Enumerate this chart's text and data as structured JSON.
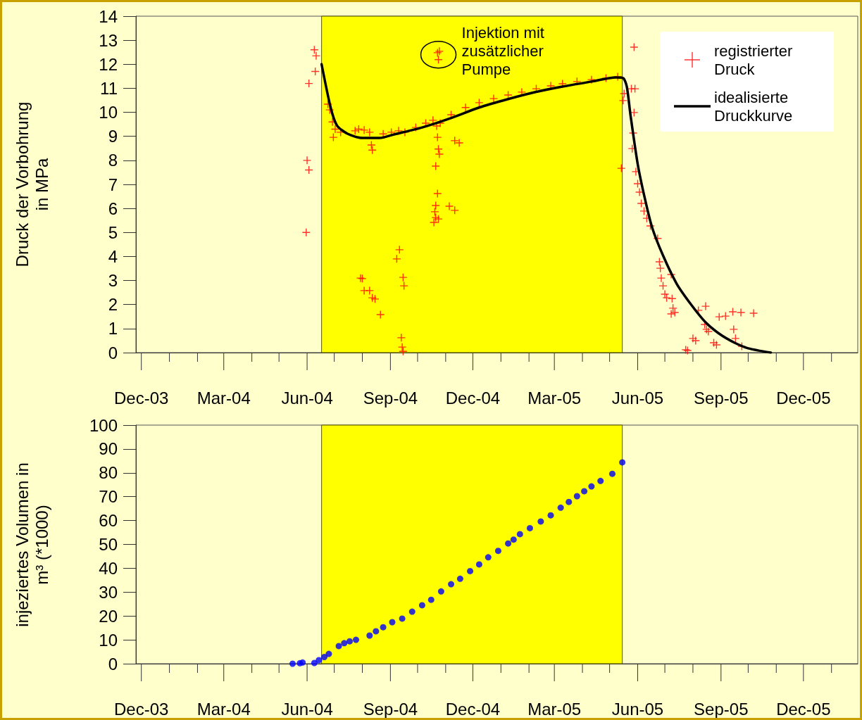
{
  "chart_data": [
    {
      "type": "scatter",
      "ylabel": "Druck der Vorbohrung in MPa",
      "xlim": [
        "2003-11-25",
        "2006-01-30"
      ],
      "xticks": [
        {
          "value": "2003-12-01",
          "label": "Dec-03"
        },
        {
          "value": "2004-01-01",
          "label": null
        },
        {
          "value": "2004-02-01",
          "label": null
        },
        {
          "value": "2004-03-01",
          "label": "Mar-04"
        },
        {
          "value": "2004-04-01",
          "label": null
        },
        {
          "value": "2004-05-01",
          "label": null
        },
        {
          "value": "2004-06-01",
          "label": "Jun-04"
        },
        {
          "value": "2004-07-01",
          "label": null
        },
        {
          "value": "2004-08-01",
          "label": null
        },
        {
          "value": "2004-09-01",
          "label": "Sep-04"
        },
        {
          "value": "2004-10-01",
          "label": null
        },
        {
          "value": "2004-11-01",
          "label": null
        },
        {
          "value": "2004-12-01",
          "label": "Dec-04"
        },
        {
          "value": "2005-01-01",
          "label": null
        },
        {
          "value": "2005-02-01",
          "label": null
        },
        {
          "value": "2005-03-01",
          "label": "Mar-05"
        },
        {
          "value": "2005-04-01",
          "label": null
        },
        {
          "value": "2005-05-01",
          "label": null
        },
        {
          "value": "2005-06-01",
          "label": "Jun-05"
        },
        {
          "value": "2005-07-01",
          "label": null
        },
        {
          "value": "2005-08-01",
          "label": null
        },
        {
          "value": "2005-09-01",
          "label": "Sep-05"
        },
        {
          "value": "2005-10-01",
          "label": null
        },
        {
          "value": "2005-11-01",
          "label": null
        },
        {
          "value": "2005-12-01",
          "label": "Dec-05"
        },
        {
          "value": "2006-01-01",
          "label": null
        }
      ],
      "ylim": [
        0,
        14
      ],
      "yticks": [
        0,
        1,
        2,
        3,
        4,
        5,
        6,
        7,
        8,
        9,
        10,
        11,
        12,
        13,
        14
      ],
      "grid": false,
      "legend": "top right",
      "bands": [
        {
          "axis": "x",
          "from": "2004-06-17",
          "to": "2005-05-15",
          "color": "#ffff00"
        }
      ],
      "annotations": [
        {
          "text": "Injektion mit zusätzlicher Pumpe",
          "x": "2004-10-24",
          "y": 12.4
        }
      ],
      "series": [
        {
          "name": "registrierter Druck",
          "type": "scatter",
          "marker": "cross",
          "color": "#ff0000",
          "x": [
            "2004-06-09",
            "2004-06-11",
            "2004-06-10",
            "2004-06-03",
            "2004-06-01",
            "2004-06-03",
            "2004-05-31",
            "2004-06-24",
            "2004-06-26",
            "2004-06-29",
            "2004-07-02",
            "2004-06-30",
            "2004-07-08",
            "2004-07-24",
            "2004-07-28",
            "2004-08-03",
            "2004-08-09",
            "2004-08-11",
            "2004-08-12",
            "2004-08-24",
            "2004-09-02",
            "2004-09-10",
            "2004-09-17",
            "2004-09-29",
            "2004-10-10",
            "2004-10-18",
            "2004-10-22",
            "2004-10-26",
            "2004-11-07",
            "2004-11-23",
            "2004-12-08",
            "2004-12-24",
            "2005-01-09",
            "2005-01-24",
            "2005-02-09",
            "2005-02-25",
            "2005-03-10",
            "2005-03-26",
            "2005-04-11",
            "2005-04-27",
            "2005-05-10",
            "2004-09-11",
            "2004-09-08",
            "2004-09-15",
            "2004-09-16",
            "2004-09-13",
            "2004-09-14",
            "2004-09-15",
            "2004-07-30",
            "2004-08-01",
            "2004-08-03",
            "2004-08-09",
            "2004-08-12",
            "2004-08-15",
            "2004-08-21",
            "2004-10-23",
            "2004-10-24",
            "2004-10-25",
            "2004-10-21",
            "2004-10-23",
            "2004-10-21",
            "2004-10-20",
            "2004-10-21",
            "2004-10-24",
            "2004-10-19",
            "2004-11-05",
            "2004-11-11",
            "2004-11-11",
            "2004-11-16",
            "2004-10-25",
            "2004-10-23",
            "2004-10-24",
            "2005-05-28",
            "2005-05-25",
            "2005-05-29",
            "2005-05-17",
            "2005-05-16",
            "2005-05-28",
            "2005-05-27",
            "2005-05-26",
            "2005-05-14",
            "2005-05-30",
            "2005-06-01",
            "2005-06-03",
            "2005-06-05",
            "2005-06-08",
            "2005-06-11",
            "2005-06-15",
            "2005-06-23",
            "2005-06-25",
            "2005-06-26",
            "2005-06-27",
            "2005-06-29",
            "2005-07-01",
            "2005-07-03",
            "2005-07-09",
            "2005-07-10",
            "2005-07-12",
            "2005-07-08",
            "2005-07-08",
            "2005-08-07",
            "2005-08-15",
            "2005-07-24",
            "2005-07-26",
            "2005-08-01",
            "2005-08-04",
            "2005-08-14",
            "2005-08-16",
            "2005-08-18",
            "2005-08-24",
            "2005-08-27",
            "2005-08-30",
            "2005-09-06",
            "2005-09-14",
            "2005-09-23",
            "2005-10-07",
            "2005-09-15",
            "2005-09-17",
            "2005-09-24"
          ],
          "values": [
            12.6,
            12.35,
            11.7,
            11.2,
            8.0,
            7.6,
            5.0,
            10.34,
            10.1,
            9.6,
            9.3,
            8.96,
            9.17,
            9.23,
            9.3,
            9.26,
            9.17,
            8.64,
            8.43,
            9.1,
            9.17,
            9.23,
            9.17,
            9.37,
            9.55,
            9.67,
            9.43,
            9.55,
            9.9,
            10.2,
            10.4,
            10.57,
            10.72,
            10.84,
            10.98,
            11.1,
            11.19,
            11.28,
            11.36,
            11.42,
            11.48,
            4.28,
            3.9,
            3.13,
            2.78,
            0.62,
            0.23,
            0.05,
            3.1,
            3.08,
            2.58,
            2.58,
            2.28,
            2.23,
            1.58,
            8.96,
            8.47,
            8.26,
            7.76,
            6.62,
            6.12,
            5.86,
            5.62,
            5.56,
            5.42,
            6.09,
            5.92,
            8.82,
            8.73,
            12.54,
            12.48,
            12.19,
            12.71,
            10.98,
            10.98,
            10.78,
            10.49,
            9.99,
            9.14,
            8.49,
            7.67,
            7.53,
            7.03,
            6.68,
            6.21,
            5.89,
            5.59,
            5.27,
            4.75,
            3.78,
            3.51,
            3.1,
            2.78,
            2.43,
            2.28,
            2.25,
            1.85,
            1.67,
            1.61,
            3.25,
            1.76,
            1.93,
            0.12,
            0.09,
            0.59,
            0.5,
            1.17,
            0.97,
            0.88,
            0.41,
            0.32,
            1.49,
            1.52,
            1.7,
            1.67,
            1.64,
            0.97,
            0.59,
            0.26
          ]
        },
        {
          "name": "idealisierte Druckkurve",
          "type": "line",
          "marker": "none",
          "line_style": "solid",
          "color": "#000000",
          "x": [
            "2004-06-17",
            "2004-06-27",
            "2004-07-04",
            "2004-07-16",
            "2004-08-01",
            "2004-08-20",
            "2004-09-05",
            "2004-10-06",
            "2004-11-06",
            "2004-12-08",
            "2005-01-09",
            "2005-02-09",
            "2005-03-10",
            "2005-04-11",
            "2005-05-08",
            "2005-05-16",
            "2005-05-20",
            "2005-05-24",
            "2005-06-01",
            "2005-06-09",
            "2005-06-17",
            "2005-06-29",
            "2005-07-14",
            "2005-07-30",
            "2005-08-15",
            "2005-08-31",
            "2005-09-16",
            "2005-10-01",
            "2005-10-26"
          ],
          "values": [
            12.0,
            10.2,
            9.45,
            9.1,
            8.93,
            8.93,
            9.08,
            9.37,
            9.75,
            10.2,
            10.55,
            10.85,
            11.07,
            11.28,
            11.45,
            11.42,
            11.07,
            9.9,
            7.85,
            6.4,
            5.2,
            4.04,
            2.87,
            2.0,
            1.26,
            0.76,
            0.41,
            0.18,
            0.0
          ]
        }
      ]
    },
    {
      "type": "scatter",
      "ylabel": "injeziertes Volumen in m³ (*1000)",
      "xlim": [
        "2003-11-25",
        "2006-01-30"
      ],
      "xticks": [
        {
          "value": "2003-12-01",
          "label": "Dec-03"
        },
        {
          "value": "2004-01-01",
          "label": null
        },
        {
          "value": "2004-02-01",
          "label": null
        },
        {
          "value": "2004-03-01",
          "label": "Mar-04"
        },
        {
          "value": "2004-04-01",
          "label": null
        },
        {
          "value": "2004-05-01",
          "label": null
        },
        {
          "value": "2004-06-01",
          "label": "Jun-04"
        },
        {
          "value": "2004-07-01",
          "label": null
        },
        {
          "value": "2004-08-01",
          "label": null
        },
        {
          "value": "2004-09-01",
          "label": "Sep-04"
        },
        {
          "value": "2004-10-01",
          "label": null
        },
        {
          "value": "2004-11-01",
          "label": null
        },
        {
          "value": "2004-12-01",
          "label": "Dec-04"
        },
        {
          "value": "2005-01-01",
          "label": null
        },
        {
          "value": "2005-02-01",
          "label": null
        },
        {
          "value": "2005-03-01",
          "label": "Mar-05"
        },
        {
          "value": "2005-04-01",
          "label": null
        },
        {
          "value": "2005-05-01",
          "label": null
        },
        {
          "value": "2005-06-01",
          "label": "Jun-05"
        },
        {
          "value": "2005-07-01",
          "label": null
        },
        {
          "value": "2005-08-01",
          "label": null
        },
        {
          "value": "2005-09-01",
          "label": "Sep-05"
        },
        {
          "value": "2005-10-01",
          "label": null
        },
        {
          "value": "2005-11-01",
          "label": null
        },
        {
          "value": "2005-12-01",
          "label": "Dec-05"
        },
        {
          "value": "2006-01-01",
          "label": null
        }
      ],
      "ylim": [
        0,
        100
      ],
      "yticks": [
        0,
        10,
        20,
        30,
        40,
        50,
        60,
        70,
        80,
        90,
        100
      ],
      "grid": false,
      "legend": false,
      "marker": "circle",
      "bands": [
        {
          "axis": "x",
          "from": "2004-06-17",
          "to": "2005-05-15",
          "color": "#ffff00"
        }
      ],
      "series": [
        {
          "color": "#0000ff",
          "x": [
            "2004-05-16",
            "2004-05-24",
            "2004-05-27",
            "2004-06-09",
            "2004-06-14",
            "2004-06-20",
            "2004-06-25",
            "2004-07-06",
            "2004-07-12",
            "2004-07-18",
            "2004-07-25",
            "2004-08-09",
            "2004-08-16",
            "2004-08-24",
            "2004-09-03",
            "2004-09-14",
            "2004-09-25",
            "2004-10-06",
            "2004-10-16",
            "2004-10-27",
            "2004-11-07",
            "2004-11-17",
            "2004-11-28",
            "2004-12-08",
            "2004-12-18",
            "2004-12-29",
            "2005-01-09",
            "2005-01-15",
            "2005-01-22",
            "2005-02-02",
            "2005-02-14",
            "2005-02-25",
            "2005-03-08",
            "2005-03-17",
            "2005-03-26",
            "2005-04-03",
            "2005-04-11",
            "2005-04-21",
            "2005-05-04",
            "2005-05-15"
          ],
          "values": [
            0,
            0.2,
            0.5,
            0.3,
            1.5,
            2.8,
            4.1,
            7.4,
            8.6,
            9.4,
            10,
            11.8,
            13.6,
            15.3,
            17.4,
            18.9,
            21.8,
            24.5,
            26.8,
            30.3,
            33.3,
            35.6,
            38.8,
            41.6,
            44.6,
            47.3,
            50.4,
            52,
            54.3,
            56.8,
            59.6,
            62.2,
            65.4,
            67.8,
            70.2,
            72.3,
            74.3,
            76.6,
            79.6,
            84.4
          ]
        }
      ]
    }
  ]
}
